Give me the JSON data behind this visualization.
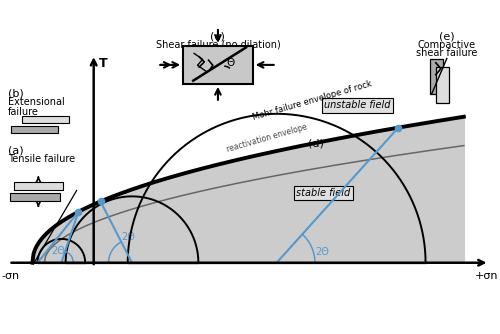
{
  "bg_color": "#ffffff",
  "fill_color": "#cccccc",
  "blue_color": "#5599cc",
  "black": "#000000",
  "dark_gray": "#444444",
  "mohr_envelope_label": "Mohr failure envelope of rock",
  "reactivation_label": "reactivation envelope",
  "stable_label": "stable field",
  "unstable_label": "unstable field",
  "sigma_n_neg": "-σn",
  "sigma_n_pos": "+σn",
  "T_label": "T",
  "two_theta": "2Θ",
  "label_a": "(a)",
  "label_b": "(b)",
  "label_c": "(c)",
  "label_d": "(d)",
  "label_e": "(e)",
  "text_a": "Tensile failure",
  "text_b_1": "Extensional",
  "text_b_2": "failure",
  "text_c": "Shear failure (no dilation)",
  "text_e_1": "Compactive",
  "text_e_2": "shear failure",
  "xmin": -1.05,
  "xmax": 4.7,
  "ymin": -0.55,
  "ymax": 2.8
}
